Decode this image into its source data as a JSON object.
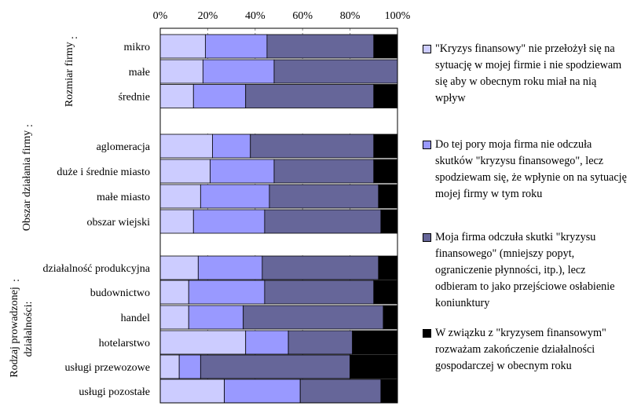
{
  "chart_data": {
    "type": "bar",
    "orientation": "horizontal",
    "stacked": "percent",
    "xlim": [
      0,
      100
    ],
    "x_ticks": [
      "0%",
      "20%",
      "40%",
      "60%",
      "80%",
      "100%"
    ],
    "grid": "vertical dashed",
    "legend_position": "right",
    "groups": [
      {
        "label": "Rozmiar firmy",
        "suffix": ":",
        "categories": [
          "mikro",
          "małe",
          "średnie"
        ]
      },
      {
        "label": "Obszar działania firmy",
        "suffix": ":",
        "categories": [
          "aglomeracja",
          "duże i średnie miasto",
          "małe miasto",
          "obszar wiejski"
        ]
      },
      {
        "label_lines": [
          "Rodzaj prowadzonej",
          "działalności:"
        ],
        "suffix": ":",
        "categories": [
          "działalność produkcyjna",
          "budownictwo",
          "handel",
          "hotelarstwo",
          "usługi przewozowe",
          "usługi pozostałe"
        ]
      }
    ],
    "series": [
      {
        "name": "\"Kryzys finansowy\" nie przełożył się na sytuację w mojej firmie i nie spodziewam się aby w obecnym roku miał na nią wpływ",
        "color": "#ccccff",
        "values": [
          19,
          18,
          14,
          22,
          21,
          17,
          14,
          16,
          12,
          12,
          36,
          8,
          27
        ]
      },
      {
        "name": "Do tej pory moja firma nie odczuła skutków \"kryzysu finansowego\", lecz spodziewam się, że wpłynie on na sytuację mojej firmy w tym roku",
        "color": "#9999ff",
        "values": [
          26,
          30,
          22,
          16,
          27,
          29,
          30,
          27,
          32,
          23,
          18,
          9,
          32
        ]
      },
      {
        "name": "Moja firma odczuła skutki \"kryzysu finansowego\" (mniejszy popyt, ograniczenie płynności, itp.), lecz odbieram to jako przejściowe osłabienie koniunktury",
        "color": "#666699",
        "values": [
          45,
          52,
          54,
          52,
          42,
          46,
          49,
          49,
          46,
          59,
          27,
          63,
          34
        ]
      },
      {
        "name": "W związku z \"kryzysem finansowym\" rozważam zakończenie działalności gospodarczej w obecnym roku",
        "color": "#000000",
        "values": [
          10,
          0,
          10,
          10,
          10,
          8,
          7,
          8,
          10,
          6,
          19,
          20,
          7
        ]
      }
    ]
  },
  "legend_items": [
    {
      "text": "\"Kryzys finansowy\" nie przełożył się na sytuację w mojej firmie i nie spodziewam się aby w obecnym roku miał na nią wpływ",
      "color": "#ccccff"
    },
    {
      "text": "Do tej pory moja firma nie odczuła skutków \"kryzysu finansowego\", lecz spodziewam się, że wpłynie on na sytuację mojej firmy w tym roku",
      "color": "#9999ff"
    },
    {
      "text": "Moja firma odczuła skutki \"kryzysu finansowego\" (mniejszy popyt, ograniczenie płynności, itp.), lecz odbieram to jako przejściowe osłabienie koniunktury",
      "color": "#666699"
    },
    {
      "text": "W związku z \"kryzysem finansowym\" rozważam zakończenie działalności gospodarczej w obecnym roku",
      "color": "#000000"
    }
  ]
}
